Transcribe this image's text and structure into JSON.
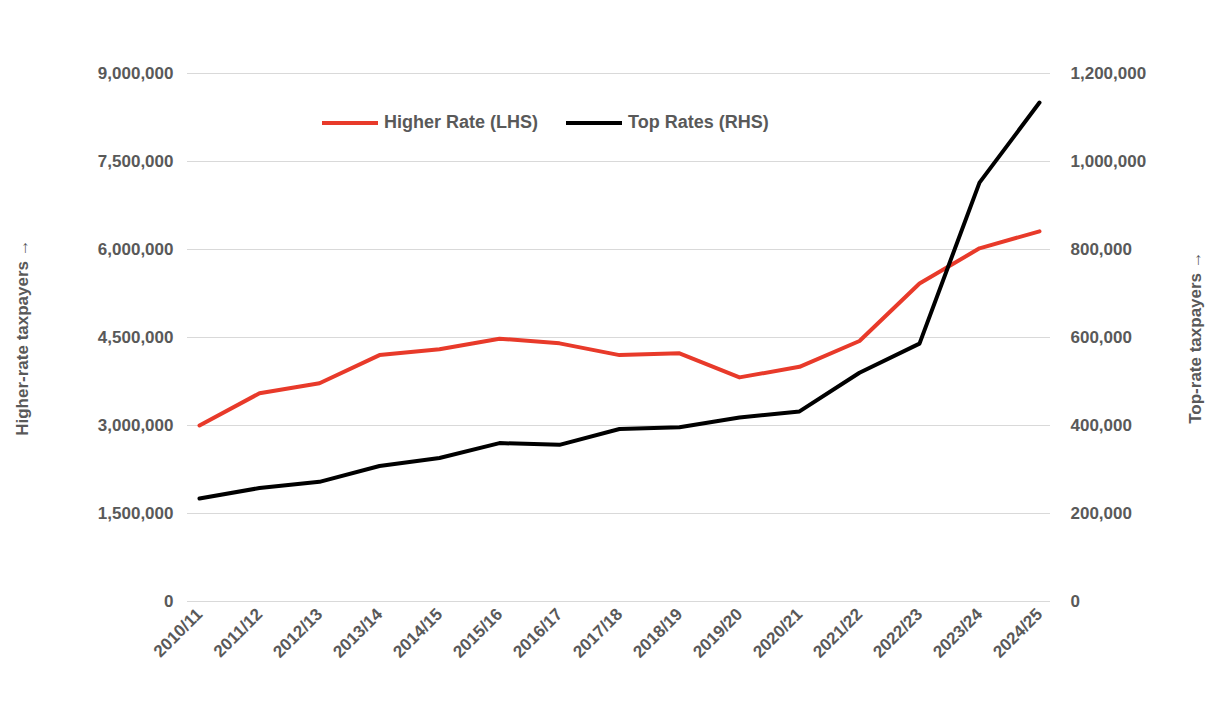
{
  "chart_data": {
    "type": "line",
    "categories": [
      "2010/11",
      "2011/12",
      "2012/13",
      "2013/14",
      "2014/15",
      "2015/16",
      "2016/17",
      "2017/18",
      "2018/19",
      "2019/20",
      "2020/21",
      "2021/22",
      "2022/23",
      "2023/24",
      "2024/25"
    ],
    "series": [
      {
        "name": "Higher Rate (LHS)",
        "color": "#e83a2a",
        "axis": "y",
        "values": [
          3000000,
          3550000,
          3720000,
          4200000,
          4300000,
          4480000,
          4400000,
          4200000,
          4230000,
          3820000,
          4000000,
          4440000,
          5420000,
          6020000,
          6310000
        ]
      },
      {
        "name": "Top Rates (RHS)",
        "color": "#000000",
        "axis": "y2",
        "values": [
          234000,
          258000,
          272000,
          308000,
          326000,
          360000,
          356000,
          392000,
          396000,
          418000,
          432000,
          520000,
          586000,
          952000,
          1134000
        ]
      }
    ],
    "y_label": "Higher-rate taxpayers",
    "y2_label": "Top-rate taxpayers",
    "ylim": [
      0,
      9000000
    ],
    "yticks": [
      0,
      {
        "value": 1500000,
        "label": "1,500,000"
      },
      {
        "value": 3000000,
        "label": "3,000,000"
      },
      {
        "value": 4500000,
        "label": "4,500,000"
      },
      {
        "value": 6000000,
        "label": "6,000,000"
      },
      {
        "value": 7500000,
        "label": "7,500,000"
      },
      {
        "value": 9000000,
        "label": "9,000,000"
      }
    ],
    "y2lim": [
      0,
      1200000
    ],
    "y2ticks": [
      0,
      {
        "value": 200000,
        "label": "200,000"
      },
      {
        "value": 400000,
        "label": "400,000"
      },
      {
        "value": 600000,
        "label": "600,000"
      },
      {
        "value": 800000,
        "label": "800,000"
      },
      {
        "value": 1000000,
        "label": "1,000,000"
      },
      {
        "value": 1200000,
        "label": "1,200,000"
      }
    ],
    "grid": true,
    "legend": "top"
  }
}
